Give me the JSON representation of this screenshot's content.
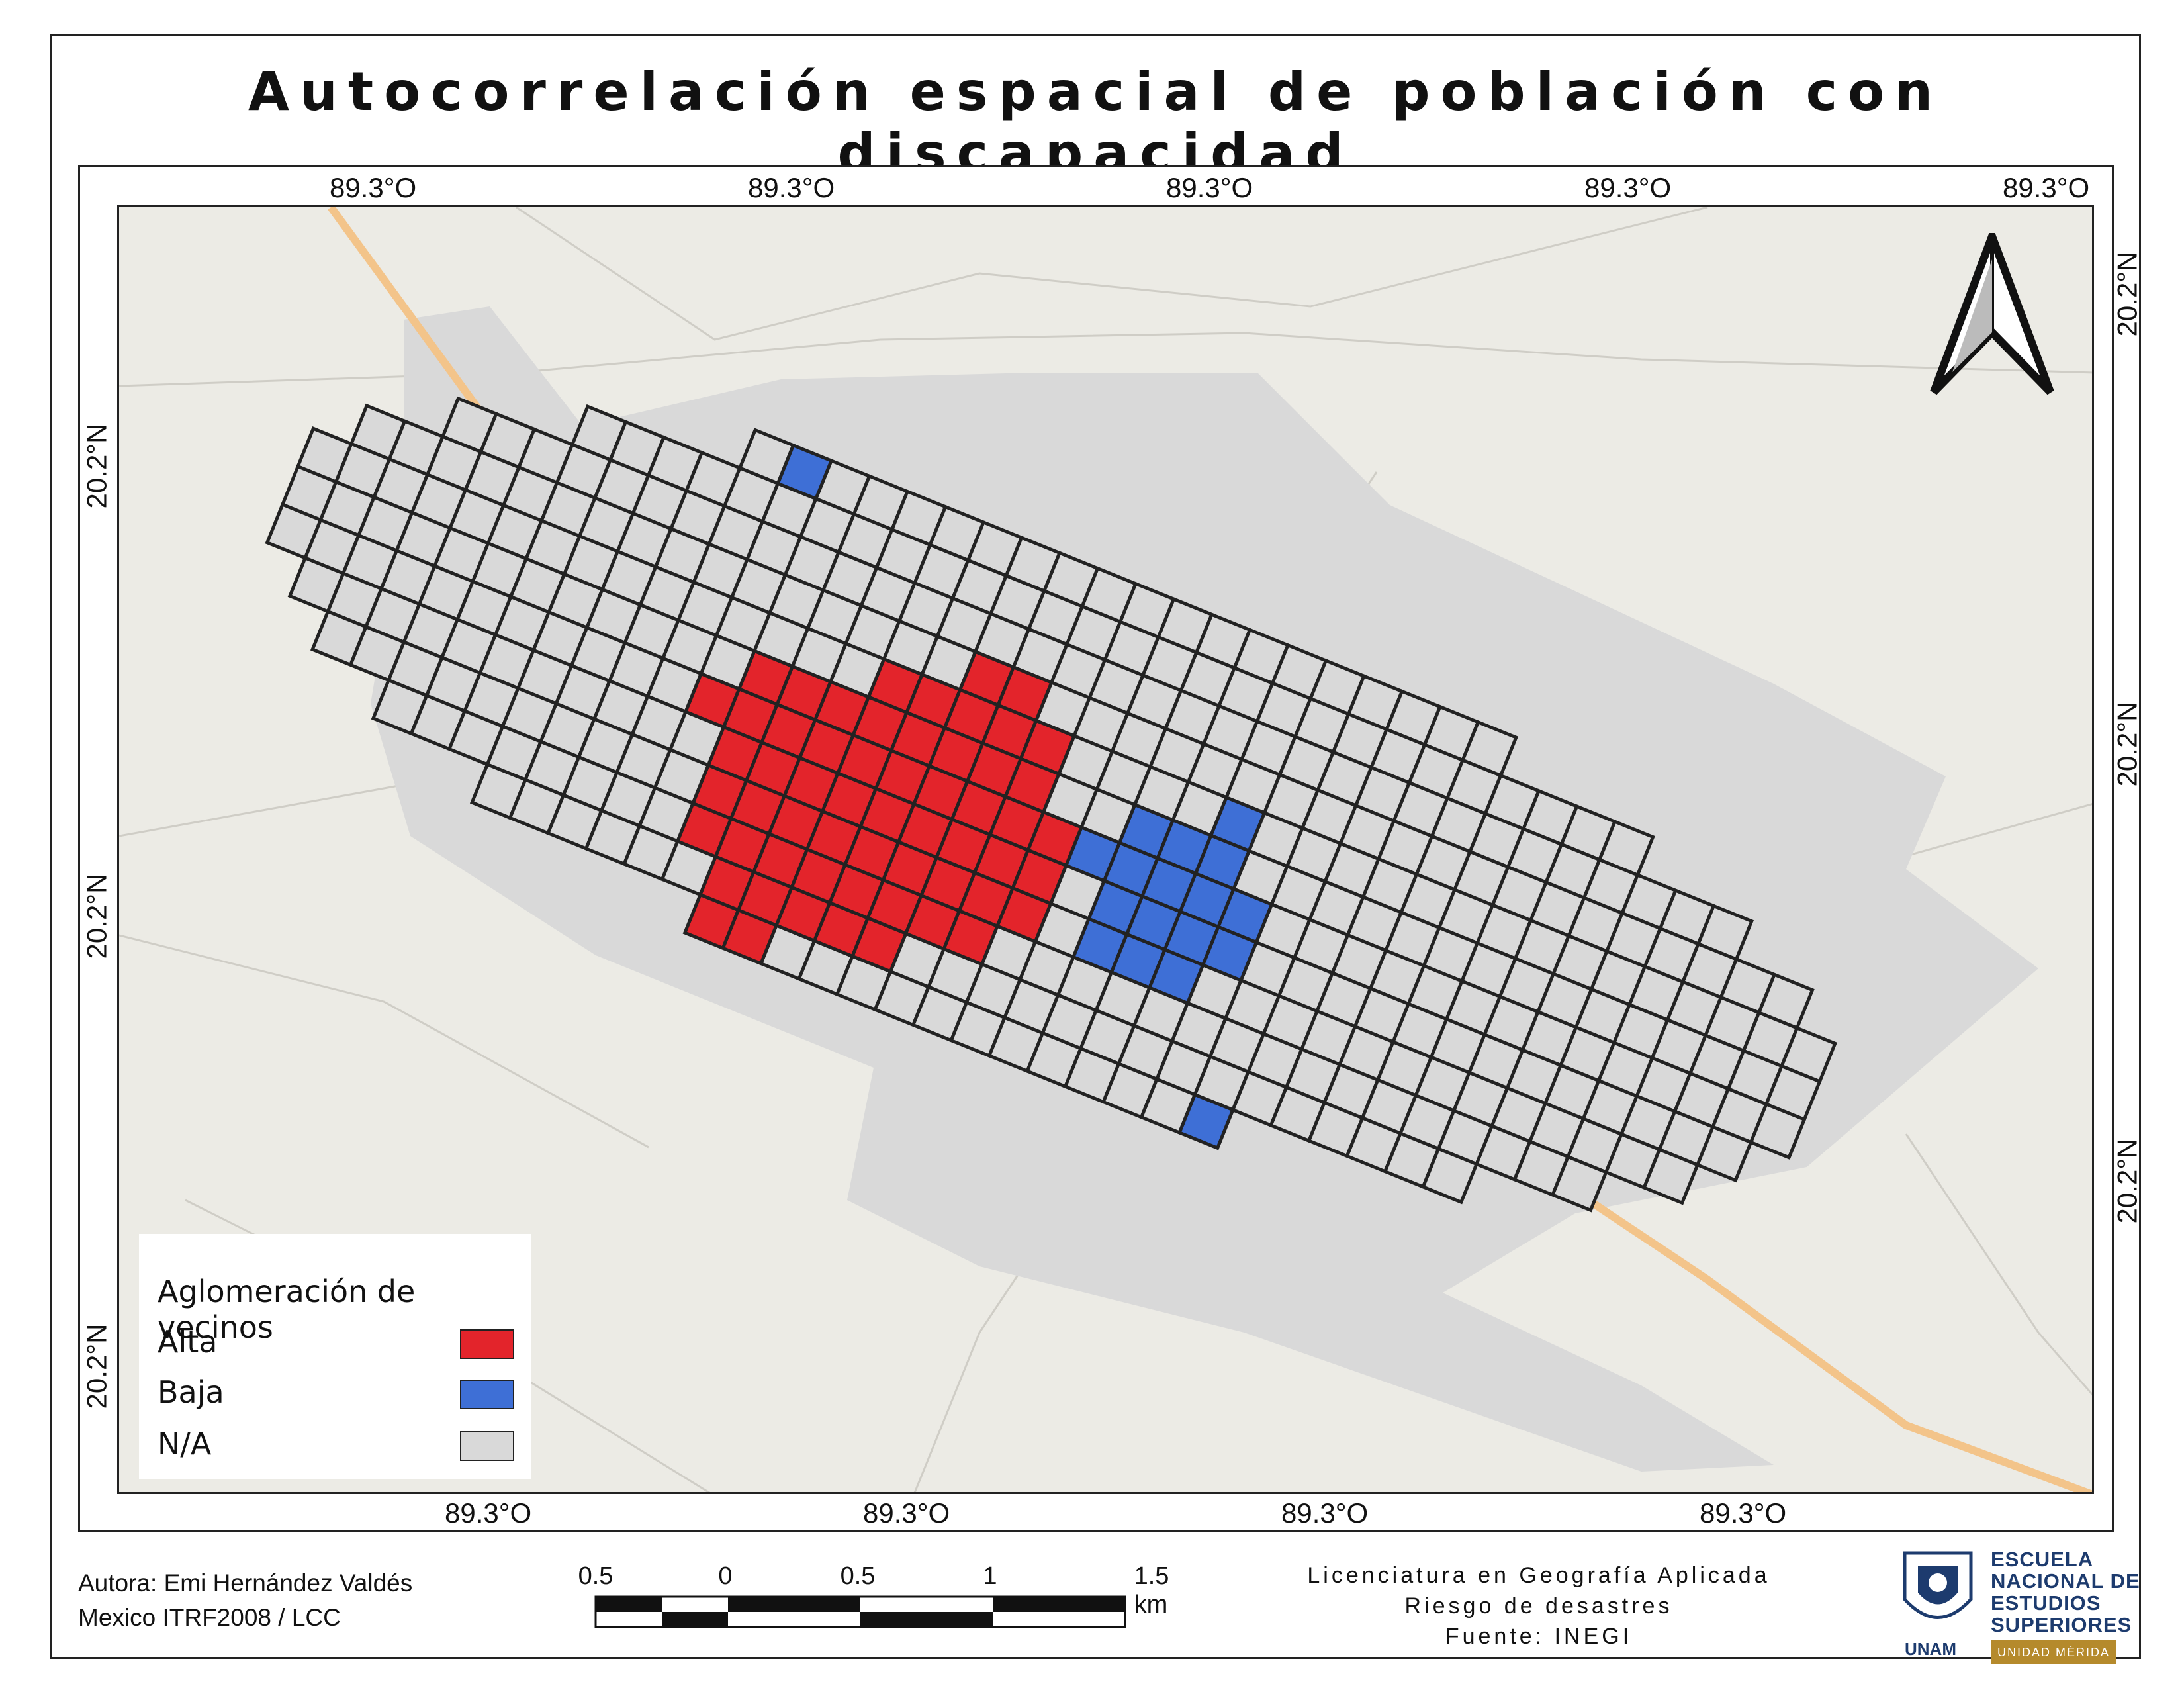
{
  "title": "Autocorrelación espacial de población con discapacidad",
  "graticule": {
    "top": [
      "89.3°O",
      "89.3°O",
      "89.3°O",
      "89.3°O",
      "89.3°O"
    ],
    "bottom": [
      "89.3°O",
      "89.3°O",
      "89.3°O",
      "89.3°O"
    ],
    "left": [
      "20.2°N",
      "20.2°N",
      "20.2°N"
    ],
    "right": [
      "20.2°N",
      "20.2°N",
      "20.2°N"
    ]
  },
  "legend": {
    "title": "Aglomeración de vecinos",
    "items": [
      {
        "label": "Alta",
        "color": "#e3242b"
      },
      {
        "label": "Baja",
        "color": "#3e6fd6"
      },
      {
        "label": "N/A",
        "color": "#d9d9d9"
      }
    ]
  },
  "author": {
    "line1": "Autora: Emi Hernández Valdés",
    "line2": "Mexico ITRF2008 / LCC"
  },
  "scale": {
    "labels": [
      "0.5",
      "0",
      "0.5",
      "1",
      "1.5 km"
    ]
  },
  "credits": {
    "line1": "Licenciatura en Geografía Aplicada",
    "line2": "Riesgo de desastres",
    "line3": "Fuente: INEGI"
  },
  "logo": {
    "line1": "ESCUELA",
    "line2": "NACIONAL DE",
    "line3": "ESTUDIOS",
    "line4": "SUPERIORES",
    "badge": "UNIDAD MÉRIDA",
    "unam": "UNAM"
  },
  "colors": {
    "alta": "#e3242b",
    "baja": "#3e6fd6",
    "na": "#d9d9d9",
    "background": "#ecebe5",
    "highway": "#f3c48a"
  }
}
